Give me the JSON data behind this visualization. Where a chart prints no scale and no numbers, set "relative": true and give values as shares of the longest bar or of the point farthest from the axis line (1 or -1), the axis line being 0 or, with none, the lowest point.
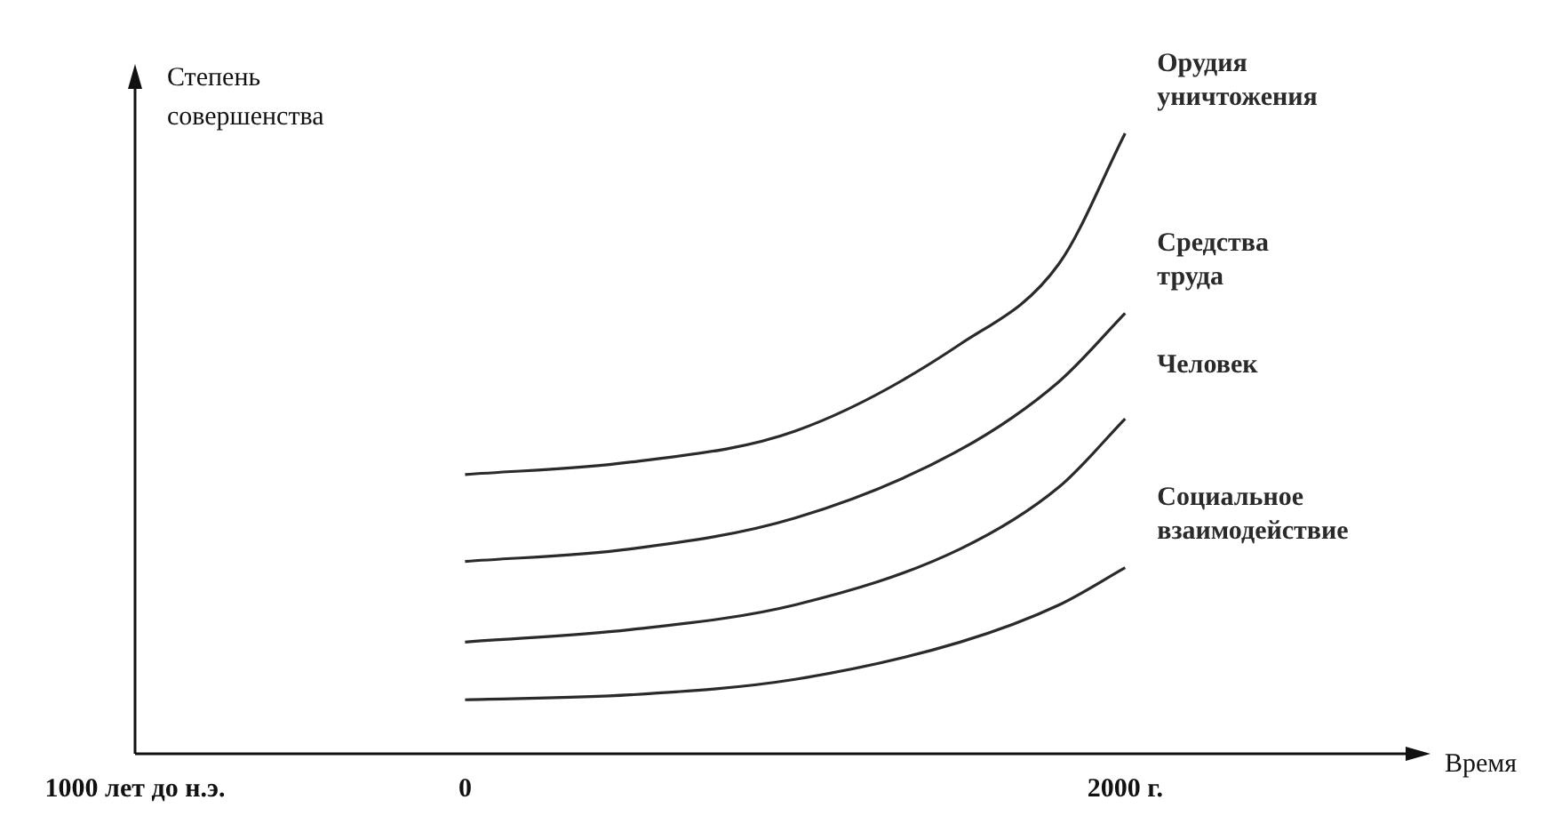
{
  "chart_data": {
    "type": "line",
    "relative": true,
    "ylabel": "Степень совершенства",
    "xlabel": "Время",
    "xlim": [
      -1000,
      2850
    ],
    "xticks": [
      {
        "value": -1000,
        "label": "1000 лет до н.э."
      },
      0,
      {
        "value": 2000,
        "label": "2000 г."
      }
    ],
    "grid": false,
    "legend": false,
    "marker": "none",
    "line_style": "solid",
    "series": [
      {
        "name": "Орудия уничтожения",
        "color": "#2a2a2a",
        "x": [
          0,
          500,
          1000,
          1500,
          1800,
          2000
        ],
        "values": [
          0.45,
          0.47,
          0.52,
          0.66,
          0.79,
          1.0
        ]
      },
      {
        "name": "Средства труда",
        "color": "#2a2a2a",
        "x": [
          0,
          500,
          1000,
          1500,
          1800,
          2000
        ],
        "values": [
          0.31,
          0.33,
          0.38,
          0.49,
          0.6,
          0.71
        ]
      },
      {
        "name": "Человек",
        "color": "#2a2a2a",
        "x": [
          0,
          500,
          1000,
          1500,
          1800,
          2000
        ],
        "values": [
          0.18,
          0.2,
          0.24,
          0.33,
          0.43,
          0.54
        ]
      },
      {
        "name": "Социальное взаимодействие",
        "color": "#2a2a2a",
        "x": [
          0,
          500,
          1000,
          1500,
          1800,
          2000
        ],
        "values": [
          0.087,
          0.095,
          0.12,
          0.18,
          0.24,
          0.3
        ]
      }
    ]
  }
}
